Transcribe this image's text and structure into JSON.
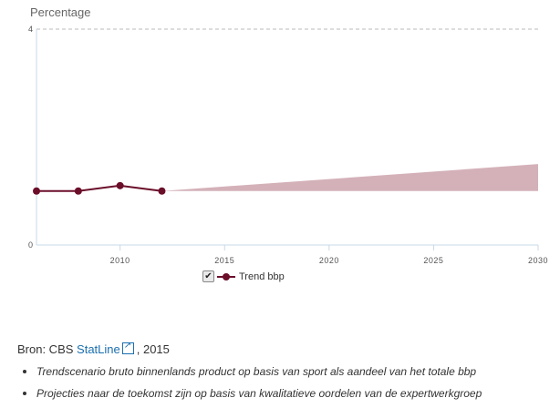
{
  "chart_data": {
    "type": "line",
    "title": "",
    "ylabel": "Percentage",
    "xlabel": "",
    "xlim": [
      2006,
      2030
    ],
    "ylim": [
      0,
      4
    ],
    "y_ticks": [
      0,
      4
    ],
    "x_ticks": [
      2010,
      2015,
      2020,
      2025,
      2030
    ],
    "grid": "dashed line at top only",
    "series": [
      {
        "name": "Trend bbp",
        "color": "#6b0e2a",
        "x": [
          2006,
          2008,
          2010,
          2012
        ],
        "y": [
          1.0,
          1.0,
          1.1,
          1.0
        ]
      }
    ],
    "projection": {
      "color": "#d4b1b9",
      "x": [
        2012,
        2030
      ],
      "lower": [
        1.0,
        1.0
      ],
      "upper": [
        1.0,
        1.5
      ]
    },
    "legend": {
      "position": "bottom-center",
      "label": "Trend bbp",
      "checked": true
    }
  },
  "source": {
    "prefix": "Bron: CBS ",
    "link_text": "StatLine",
    "suffix": ", 2015"
  },
  "notes": [
    "Trendscenario bruto binnenlands product op basis van sport als aandeel van het totale bbp",
    "Projecties naar de toekomst zijn op basis van kwalitatieve oordelen van de expertwerkgroep"
  ]
}
